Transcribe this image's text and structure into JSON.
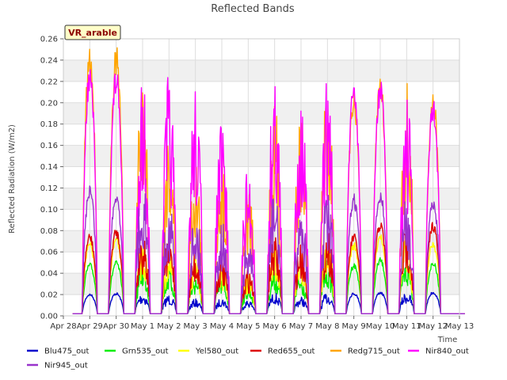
{
  "chart_data": {
    "type": "line",
    "title": "Reflected Bands",
    "xlabel": "Time",
    "ylabel": "Reflected Radiation (W/m2)",
    "badge": "VR_arable",
    "ylim": [
      0,
      0.26
    ],
    "xlim": [
      "Apr 28",
      "May 13"
    ],
    "y_ticks": [
      "0.00",
      "0.02",
      "0.04",
      "0.06",
      "0.08",
      "0.10",
      "0.12",
      "0.14",
      "0.16",
      "0.18",
      "0.20",
      "0.22",
      "0.24",
      "0.26"
    ],
    "x_ticks": [
      "Apr 28",
      "Apr 29",
      "Apr 30",
      "May 1",
      "May 2",
      "May 3",
      "May 4",
      "May 5",
      "May 6",
      "May 7",
      "May 8",
      "May 9",
      "May 10",
      "May 11",
      "May 12",
      "May 13"
    ],
    "grid": true,
    "legend_position": "bottom",
    "days": [
      "Apr 29",
      "Apr 30",
      "May 1",
      "May 2",
      "May 3",
      "May 4",
      "May 5",
      "May 6",
      "May 7",
      "May 8",
      "May 9",
      "May 10",
      "May 11",
      "May 12"
    ],
    "series": [
      {
        "name": "Blu475_out",
        "color": "#0000cc",
        "peaks": [
          0.021,
          0.022,
          0.022,
          0.02,
          0.016,
          0.017,
          0.015,
          0.022,
          0.018,
          0.022,
          0.022,
          0.023,
          0.023,
          0.023
        ]
      },
      {
        "name": "Grn535_out",
        "color": "#00ee00",
        "peaks": [
          0.05,
          0.052,
          0.052,
          0.045,
          0.04,
          0.038,
          0.03,
          0.045,
          0.04,
          0.053,
          0.05,
          0.055,
          0.053,
          0.052
        ]
      },
      {
        "name": "Yel580_out",
        "color": "#ffff00",
        "peaks": [
          0.07,
          0.075,
          0.072,
          0.06,
          0.055,
          0.05,
          0.04,
          0.065,
          0.06,
          0.075,
          0.07,
          0.08,
          0.075,
          0.072
        ]
      },
      {
        "name": "Red655_out",
        "color": "#dd0000",
        "peaks": [
          0.078,
          0.083,
          0.083,
          0.075,
          0.062,
          0.058,
          0.045,
          0.075,
          0.07,
          0.085,
          0.078,
          0.09,
          0.088,
          0.09
        ]
      },
      {
        "name": "Redg715_out",
        "color": "#ffa500",
        "peaks": [
          0.255,
          0.255,
          0.232,
          0.18,
          0.15,
          0.16,
          0.12,
          0.2,
          0.19,
          0.225,
          0.215,
          0.23,
          0.22,
          0.215
        ]
      },
      {
        "name": "Nir840_out",
        "color": "#ff00ff",
        "peaks": [
          0.236,
          0.235,
          0.23,
          0.23,
          0.22,
          0.185,
          0.14,
          0.232,
          0.21,
          0.225,
          0.222,
          0.225,
          0.212,
          0.205
        ]
      },
      {
        "name": "Nir945_out",
        "color": "#9933cc",
        "peaks": [
          0.125,
          0.12,
          0.13,
          0.11,
          0.1,
          0.09,
          0.07,
          0.12,
          0.11,
          0.12,
          0.115,
          0.12,
          0.115,
          0.112
        ]
      }
    ]
  }
}
